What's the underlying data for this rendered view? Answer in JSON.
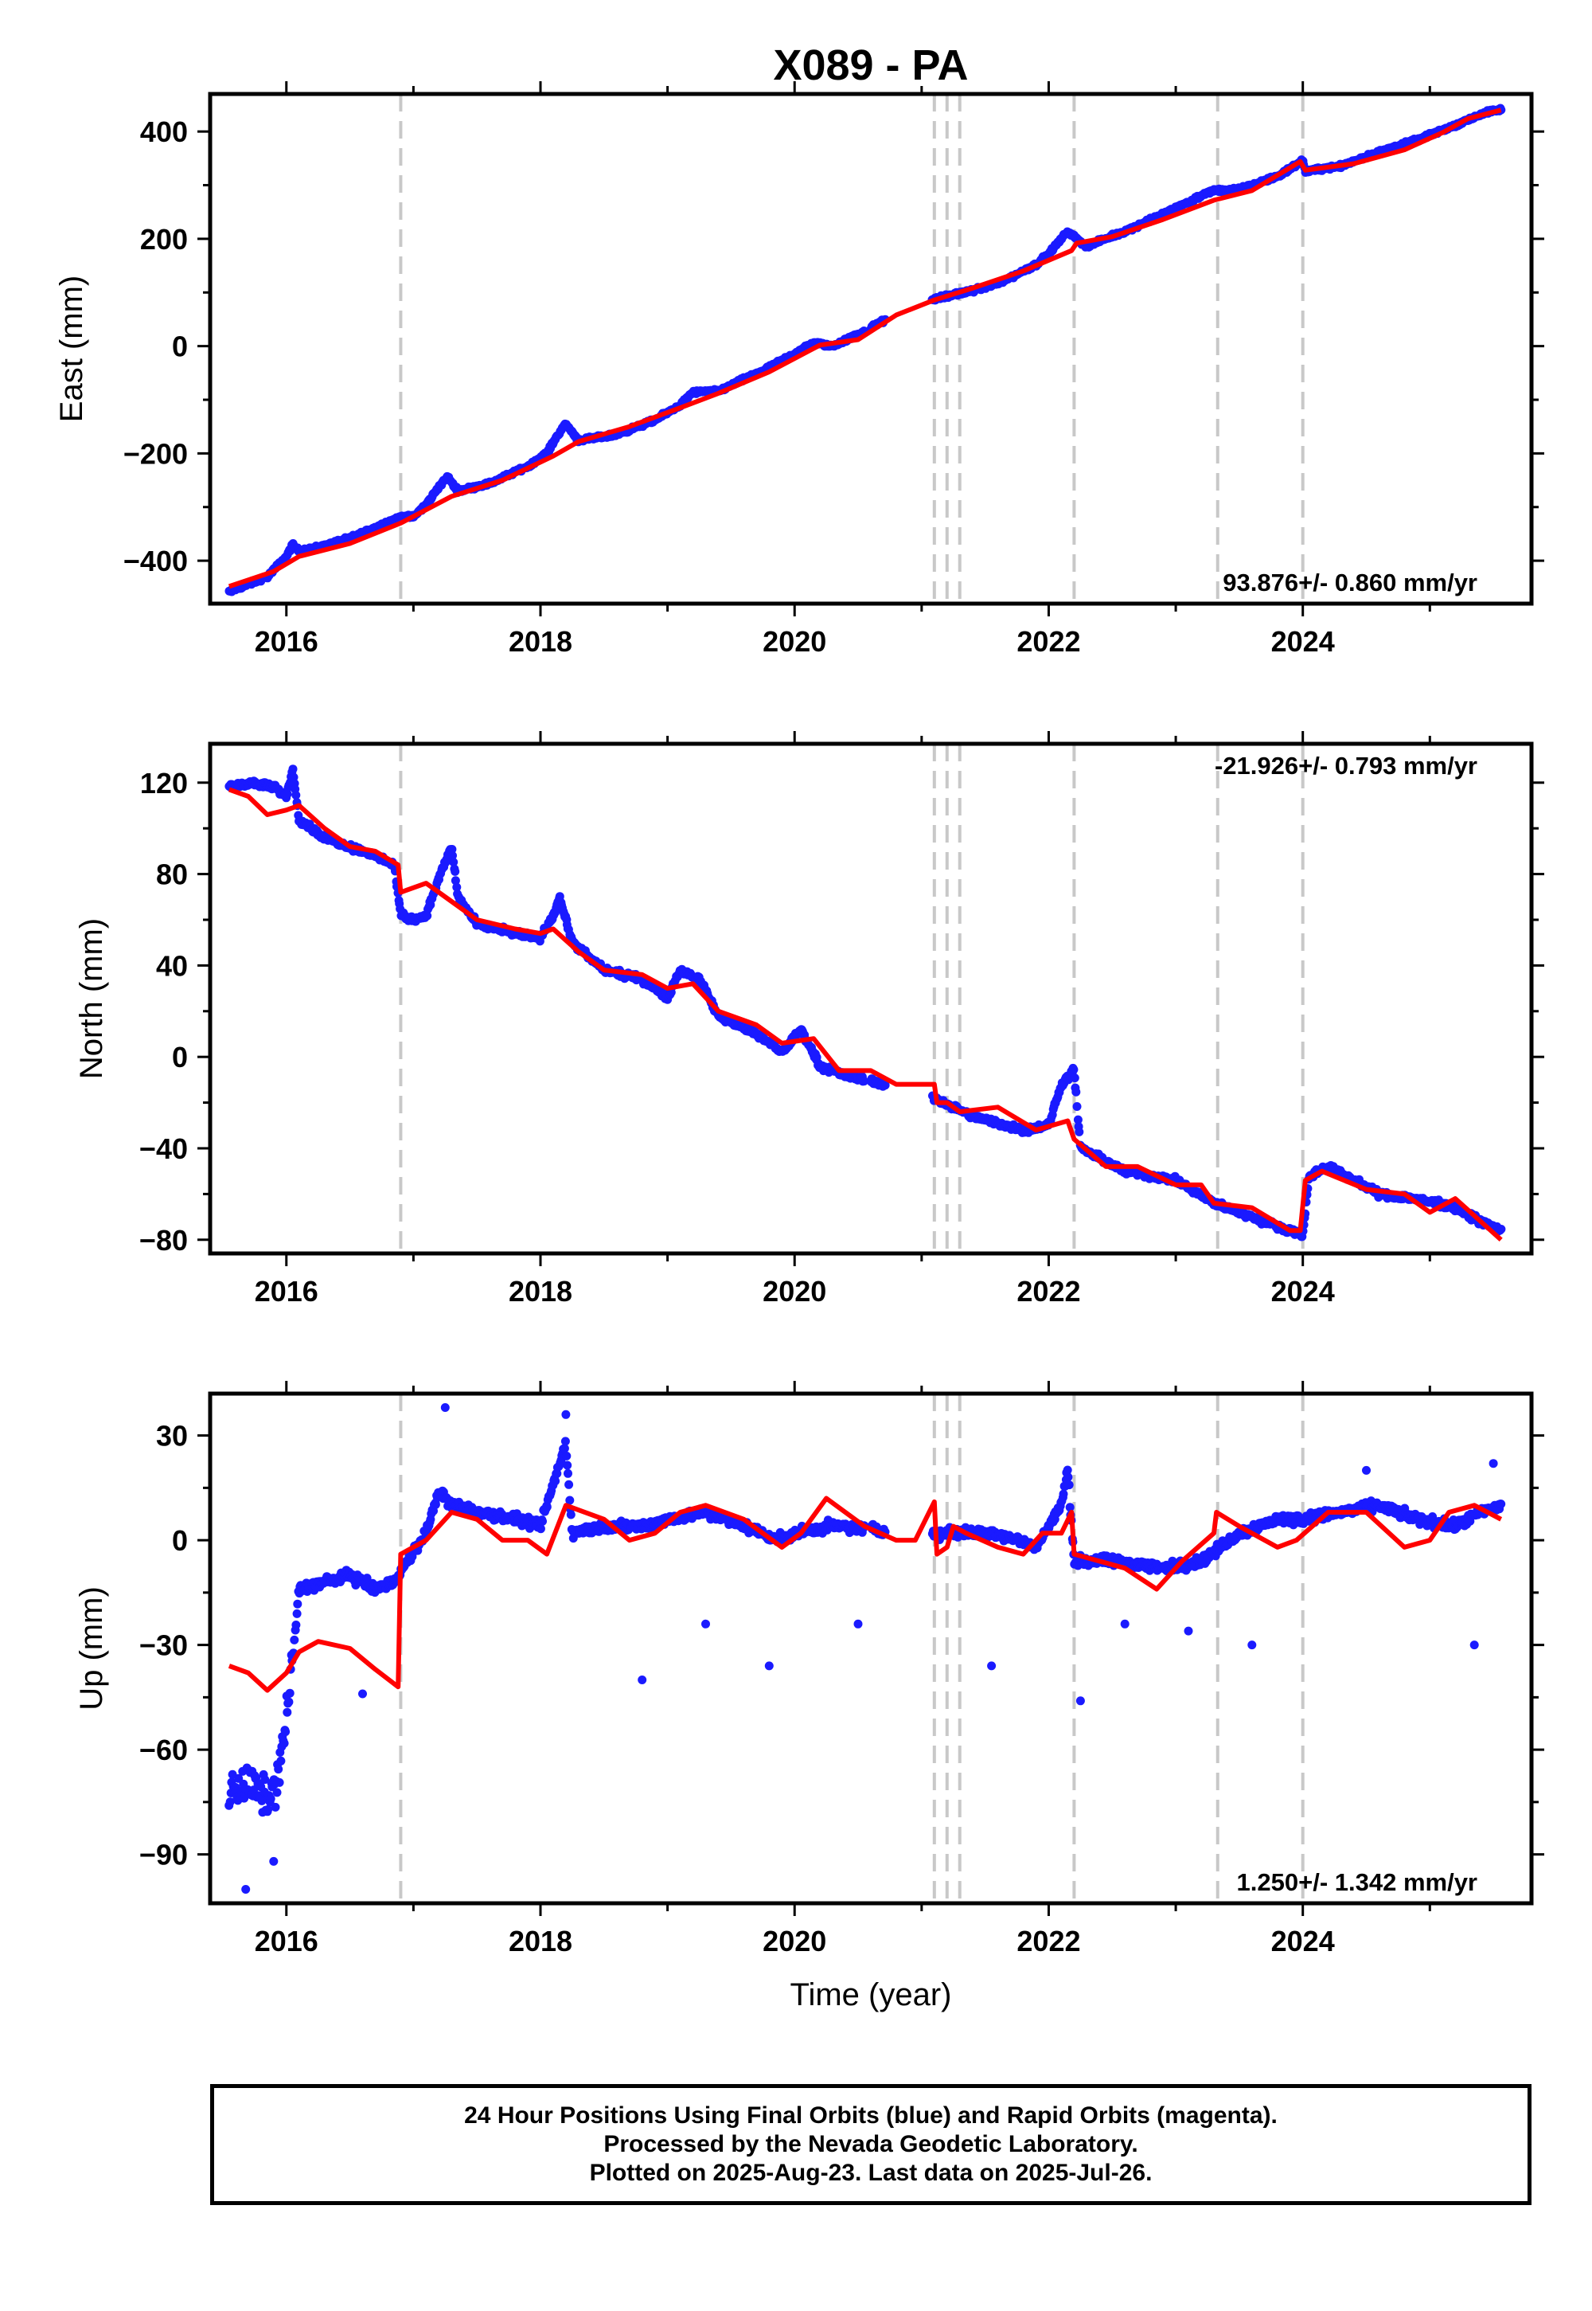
{
  "title": "X089 - PA",
  "colors": {
    "data": "#1a1aff",
    "model": "#ff0000",
    "event_line": "#c8c8c8",
    "frame": "#000000"
  },
  "x_range": [
    2015.4,
    2025.8
  ],
  "x_tick_labels": [
    "2016",
    "2018",
    "2020",
    "2022",
    "2024"
  ],
  "x_axis_label": "Time (year)",
  "event_lines": [
    2016.9,
    2021.1,
    2021.2,
    2021.3,
    2022.2,
    2023.33,
    2024.0
  ],
  "footer": {
    "line1": "24 Hour Positions Using Final Orbits (blue) and Rapid Orbits (magenta).",
    "line2": "Processed by the Nevada Geodetic Laboratory.",
    "line3": "Plotted on 2025-Aug-23. Last data on 2025-Jul-26."
  },
  "chart_data": [
    {
      "type": "scatter",
      "name": "east",
      "ylabel": "East (mm)",
      "ylim": [
        -480,
        470
      ],
      "yticks": [
        -400,
        -200,
        0,
        200,
        400
      ],
      "y_tick_labels": [
        "−400",
        "−200",
        "0",
        "200",
        "400"
      ],
      "rate_label": "93.876+/- 0.860 mm/yr",
      "rate_position": "bottom-right",
      "data_points": [
        [
          2015.55,
          -458
        ],
        [
          2015.7,
          -444
        ],
        [
          2015.85,
          -430
        ],
        [
          2016.0,
          -392
        ],
        [
          2016.05,
          -370
        ],
        [
          2016.1,
          -382
        ],
        [
          2016.3,
          -372
        ],
        [
          2016.5,
          -358
        ],
        [
          2016.7,
          -338
        ],
        [
          2016.9,
          -318
        ],
        [
          2017.0,
          -318
        ],
        [
          2017.1,
          -296
        ],
        [
          2017.2,
          -262
        ],
        [
          2017.27,
          -244
        ],
        [
          2017.35,
          -270
        ],
        [
          2017.6,
          -256
        ],
        [
          2017.9,
          -224
        ],
        [
          2018.05,
          -200
        ],
        [
          2018.15,
          -160
        ],
        [
          2018.2,
          -145
        ],
        [
          2018.3,
          -176
        ],
        [
          2018.6,
          -165
        ],
        [
          2018.9,
          -138
        ],
        [
          2019.1,
          -110
        ],
        [
          2019.2,
          -86
        ],
        [
          2019.4,
          -84
        ],
        [
          2019.6,
          -62
        ],
        [
          2019.8,
          -40
        ],
        [
          2020.0,
          -14
        ],
        [
          2020.15,
          6
        ],
        [
          2020.3,
          0
        ],
        [
          2020.5,
          22
        ],
        [
          2020.9,
          72
        ],
        [
          2021.1,
          88
        ],
        [
          2021.3,
          98
        ],
        [
          2021.6,
          116
        ],
        [
          2021.9,
          152
        ],
        [
          2022.0,
          172
        ],
        [
          2022.1,
          200
        ],
        [
          2022.15,
          214
        ],
        [
          2022.2,
          204
        ],
        [
          2022.3,
          186
        ],
        [
          2022.6,
          214
        ],
        [
          2022.9,
          246
        ],
        [
          2023.2,
          280
        ],
        [
          2023.3,
          290
        ],
        [
          2023.5,
          292
        ],
        [
          2023.8,
          316
        ],
        [
          2024.0,
          346
        ],
        [
          2024.02,
          326
        ],
        [
          2024.3,
          336
        ],
        [
          2024.6,
          362
        ],
        [
          2024.9,
          384
        ],
        [
          2025.2,
          412
        ],
        [
          2025.4,
          432
        ],
        [
          2025.56,
          442
        ]
      ],
      "model_points": [
        [
          2015.55,
          -448
        ],
        [
          2015.9,
          -420
        ],
        [
          2016.1,
          -392
        ],
        [
          2016.5,
          -368
        ],
        [
          2016.9,
          -330
        ],
        [
          2017.3,
          -280
        ],
        [
          2017.7,
          -250
        ],
        [
          2018.1,
          -205
        ],
        [
          2018.3,
          -178
        ],
        [
          2018.7,
          -150
        ],
        [
          2019.1,
          -115
        ],
        [
          2019.4,
          -88
        ],
        [
          2019.8,
          -48
        ],
        [
          2020.2,
          2
        ],
        [
          2020.5,
          12
        ],
        [
          2020.8,
          58
        ],
        [
          2021.1,
          86
        ],
        [
          2021.4,
          108
        ],
        [
          2021.8,
          140
        ],
        [
          2022.18,
          178
        ],
        [
          2022.22,
          192
        ],
        [
          2022.5,
          204
        ],
        [
          2022.9,
          236
        ],
        [
          2023.3,
          272
        ],
        [
          2023.6,
          290
        ],
        [
          2023.98,
          344
        ],
        [
          2024.02,
          328
        ],
        [
          2024.4,
          340
        ],
        [
          2024.8,
          366
        ],
        [
          2025.1,
          398
        ],
        [
          2025.3,
          424
        ],
        [
          2025.56,
          440
        ]
      ],
      "scatter": 70
    },
    {
      "type": "scatter",
      "name": "north",
      "ylabel": "North (mm)",
      "ylim": [
        -86,
        137
      ],
      "yticks": [
        -80,
        -40,
        0,
        40,
        80,
        120
      ],
      "y_tick_labels": [
        "−80",
        "−40",
        "0",
        "40",
        "80",
        "120"
      ],
      "rate_label": "-21.926+/- 0.793 mm/yr",
      "rate_position": "top-right",
      "data_points": [
        [
          2015.55,
          118
        ],
        [
          2015.7,
          120
        ],
        [
          2015.9,
          118
        ],
        [
          2016.0,
          114
        ],
        [
          2016.05,
          126
        ],
        [
          2016.1,
          104
        ],
        [
          2016.3,
          96
        ],
        [
          2016.5,
          92
        ],
        [
          2016.7,
          88
        ],
        [
          2016.85,
          84
        ],
        [
          2016.9,
          62
        ],
        [
          2017.0,
          60
        ],
        [
          2017.1,
          62
        ],
        [
          2017.2,
          78
        ],
        [
          2017.3,
          92
        ],
        [
          2017.35,
          70
        ],
        [
          2017.5,
          58
        ],
        [
          2017.8,
          54
        ],
        [
          2018.0,
          52
        ],
        [
          2018.1,
          62
        ],
        [
          2018.15,
          70
        ],
        [
          2018.25,
          50
        ],
        [
          2018.5,
          38
        ],
        [
          2018.8,
          34
        ],
        [
          2019.0,
          26
        ],
        [
          2019.1,
          38
        ],
        [
          2019.25,
          34
        ],
        [
          2019.4,
          18
        ],
        [
          2019.7,
          10
        ],
        [
          2019.9,
          2
        ],
        [
          2020.05,
          12
        ],
        [
          2020.2,
          -4
        ],
        [
          2020.4,
          -8
        ],
        [
          2020.9,
          -14
        ],
        [
          2021.1,
          -18
        ],
        [
          2021.4,
          -26
        ],
        [
          2021.8,
          -32
        ],
        [
          2022.0,
          -30
        ],
        [
          2022.1,
          -12
        ],
        [
          2022.2,
          -6
        ],
        [
          2022.25,
          -40
        ],
        [
          2022.6,
          -50
        ],
        [
          2023.0,
          -54
        ],
        [
          2023.3,
          -64
        ],
        [
          2023.6,
          -70
        ],
        [
          2023.9,
          -76
        ],
        [
          2024.0,
          -78
        ],
        [
          2024.05,
          -52
        ],
        [
          2024.2,
          -48
        ],
        [
          2024.6,
          -60
        ],
        [
          2024.9,
          -62
        ],
        [
          2025.2,
          -66
        ],
        [
          2025.4,
          -72
        ],
        [
          2025.56,
          -76
        ]
      ],
      "model_points": [
        [
          2015.55,
          117
        ],
        [
          2015.7,
          114
        ],
        [
          2015.85,
          106
        ],
        [
          2016.0,
          108
        ],
        [
          2016.1,
          110
        ],
        [
          2016.3,
          100
        ],
        [
          2016.5,
          92
        ],
        [
          2016.7,
          90
        ],
        [
          2016.88,
          84
        ],
        [
          2016.9,
          72
        ],
        [
          2017.1,
          76
        ],
        [
          2017.3,
          68
        ],
        [
          2017.5,
          60
        ],
        [
          2017.8,
          56
        ],
        [
          2018.0,
          54
        ],
        [
          2018.1,
          56
        ],
        [
          2018.3,
          46
        ],
        [
          2018.5,
          38
        ],
        [
          2018.8,
          36
        ],
        [
          2019.0,
          30
        ],
        [
          2019.2,
          32
        ],
        [
          2019.4,
          20
        ],
        [
          2019.7,
          14
        ],
        [
          2019.9,
          6
        ],
        [
          2020.15,
          8
        ],
        [
          2020.35,
          -6
        ],
        [
          2020.6,
          -6
        ],
        [
          2020.8,
          -12
        ],
        [
          2021.1,
          -12
        ],
        [
          2021.12,
          -20
        ],
        [
          2021.2,
          -20
        ],
        [
          2021.3,
          -24
        ],
        [
          2021.6,
          -22
        ],
        [
          2021.9,
          -32
        ],
        [
          2022.15,
          -28
        ],
        [
          2022.2,
          -36
        ],
        [
          2022.45,
          -48
        ],
        [
          2022.7,
          -48
        ],
        [
          2023.0,
          -56
        ],
        [
          2023.2,
          -56
        ],
        [
          2023.3,
          -64
        ],
        [
          2023.6,
          -66
        ],
        [
          2023.9,
          -76
        ],
        [
          2023.98,
          -76
        ],
        [
          2024.02,
          -54
        ],
        [
          2024.15,
          -50
        ],
        [
          2024.5,
          -58
        ],
        [
          2024.8,
          -60
        ],
        [
          2025.0,
          -68
        ],
        [
          2025.2,
          -62
        ],
        [
          2025.4,
          -72
        ],
        [
          2025.56,
          -80
        ]
      ],
      "scatter": 10
    },
    {
      "type": "scatter",
      "name": "up",
      "ylabel": "Up (mm)",
      "ylim": [
        -104,
        42
      ],
      "yticks": [
        -90,
        -60,
        -30,
        0,
        30
      ],
      "y_tick_labels": [
        "−90",
        "−60",
        "−30",
        "0",
        "30"
      ],
      "rate_label": "1.250+/- 1.342 mm/yr",
      "rate_position": "bottom-right",
      "data_points": [
        [
          2015.55,
          -72
        ],
        [
          2015.7,
          -70
        ],
        [
          2015.85,
          -74
        ],
        [
          2015.95,
          -66
        ],
        [
          2016.05,
          -34
        ],
        [
          2016.1,
          -14
        ],
        [
          2016.3,
          -12
        ],
        [
          2016.5,
          -10
        ],
        [
          2016.7,
          -14
        ],
        [
          2016.85,
          -12
        ],
        [
          2016.95,
          -6
        ],
        [
          2017.1,
          2
        ],
        [
          2017.2,
          14
        ],
        [
          2017.3,
          10
        ],
        [
          2017.5,
          8
        ],
        [
          2017.8,
          6
        ],
        [
          2018.0,
          4
        ],
        [
          2018.1,
          16
        ],
        [
          2018.2,
          28
        ],
        [
          2018.25,
          2
        ],
        [
          2018.5,
          4
        ],
        [
          2018.8,
          4
        ],
        [
          2019.0,
          6
        ],
        [
          2019.3,
          8
        ],
        [
          2019.6,
          4
        ],
        [
          2019.9,
          0
        ],
        [
          2020.0,
          2
        ],
        [
          2020.3,
          4
        ],
        [
          2021.15,
          2
        ],
        [
          2021.3,
          2
        ],
        [
          2021.6,
          2
        ],
        [
          2021.9,
          -2
        ],
        [
          2022.1,
          10
        ],
        [
          2022.15,
          20
        ],
        [
          2022.2,
          -6
        ],
        [
          2022.5,
          -6
        ],
        [
          2022.9,
          -8
        ],
        [
          2023.2,
          -6
        ],
        [
          2023.35,
          -2
        ],
        [
          2023.5,
          2
        ],
        [
          2023.8,
          6
        ],
        [
          2024.0,
          6
        ],
        [
          2024.3,
          8
        ],
        [
          2024.6,
          10
        ],
        [
          2024.9,
          6
        ],
        [
          2025.2,
          4
        ],
        [
          2025.4,
          8
        ],
        [
          2025.56,
          10
        ]
      ],
      "outliers": [
        [
          2015.68,
          -100
        ],
        [
          2015.9,
          -92
        ],
        [
          2016.6,
          -44
        ],
        [
          2017.25,
          38
        ],
        [
          2018.2,
          36
        ],
        [
          2018.8,
          -40
        ],
        [
          2019.3,
          -24
        ],
        [
          2019.8,
          -36
        ],
        [
          2020.5,
          -24
        ],
        [
          2021.55,
          -36
        ],
        [
          2022.25,
          -46
        ],
        [
          2022.6,
          -24
        ],
        [
          2023.1,
          -26
        ],
        [
          2023.6,
          -30
        ],
        [
          2024.5,
          20
        ],
        [
          2025.35,
          -30
        ],
        [
          2025.5,
          22
        ]
      ],
      "model_points": [
        [
          2015.55,
          -36
        ],
        [
          2015.7,
          -38
        ],
        [
          2015.85,
          -43
        ],
        [
          2016.0,
          -38
        ],
        [
          2016.1,
          -32
        ],
        [
          2016.25,
          -29
        ],
        [
          2016.5,
          -31
        ],
        [
          2016.7,
          -37
        ],
        [
          2016.88,
          -42
        ],
        [
          2016.9,
          -4
        ],
        [
          2017.1,
          0
        ],
        [
          2017.3,
          8
        ],
        [
          2017.5,
          6
        ],
        [
          2017.7,
          0
        ],
        [
          2017.9,
          0
        ],
        [
          2018.05,
          -4
        ],
        [
          2018.2,
          10
        ],
        [
          2018.5,
          6
        ],
        [
          2018.7,
          0
        ],
        [
          2018.9,
          2
        ],
        [
          2019.1,
          8
        ],
        [
          2019.3,
          10
        ],
        [
          2019.6,
          6
        ],
        [
          2019.9,
          -2
        ],
        [
          2020.05,
          2
        ],
        [
          2020.25,
          12
        ],
        [
          2020.55,
          4
        ],
        [
          2020.8,
          0
        ],
        [
          2020.95,
          0
        ],
        [
          2021.1,
          11
        ],
        [
          2021.12,
          -4
        ],
        [
          2021.2,
          -2
        ],
        [
          2021.25,
          4
        ],
        [
          2021.35,
          2
        ],
        [
          2021.6,
          -2
        ],
        [
          2021.8,
          -4
        ],
        [
          2021.95,
          2
        ],
        [
          2022.1,
          2
        ],
        [
          2022.18,
          8
        ],
        [
          2022.2,
          -4
        ],
        [
          2022.6,
          -8
        ],
        [
          2022.85,
          -14
        ],
        [
          2023.05,
          -6
        ],
        [
          2023.3,
          2
        ],
        [
          2023.32,
          8
        ],
        [
          2023.5,
          4
        ],
        [
          2023.8,
          -2
        ],
        [
          2023.95,
          0
        ],
        [
          2024.2,
          8
        ],
        [
          2024.5,
          8
        ],
        [
          2024.8,
          -2
        ],
        [
          2025.0,
          0
        ],
        [
          2025.15,
          8
        ],
        [
          2025.35,
          10
        ],
        [
          2025.56,
          6
        ]
      ],
      "scatter": 11
    }
  ]
}
